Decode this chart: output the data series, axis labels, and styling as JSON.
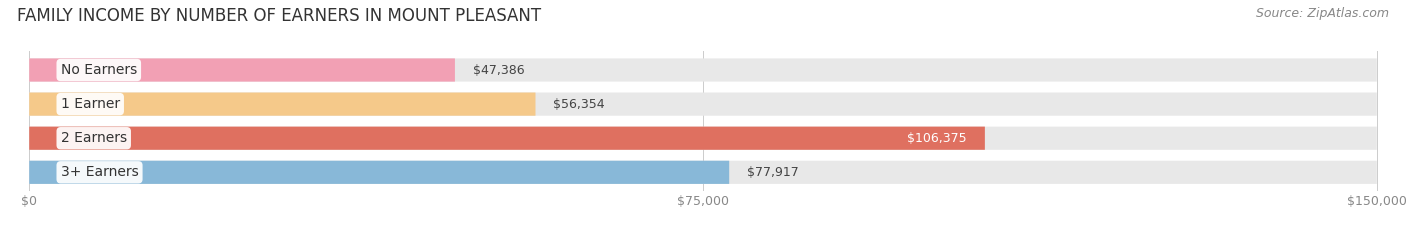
{
  "title": "FAMILY INCOME BY NUMBER OF EARNERS IN MOUNT PLEASANT",
  "source": "Source: ZipAtlas.com",
  "categories": [
    "No Earners",
    "1 Earner",
    "2 Earners",
    "3+ Earners"
  ],
  "values": [
    47386,
    56354,
    106375,
    77917
  ],
  "bar_colors": [
    "#f2a0b4",
    "#f5c98a",
    "#df7060",
    "#88b8d8"
  ],
  "bar_bg_color": "#e8e8e8",
  "value_labels": [
    "$47,386",
    "$56,354",
    "$106,375",
    "$77,917"
  ],
  "xlim": [
    0,
    150000
  ],
  "xticks": [
    0,
    75000,
    150000
  ],
  "xtick_labels": [
    "$0",
    "$75,000",
    "$150,000"
  ],
  "title_fontsize": 12,
  "source_fontsize": 9,
  "label_fontsize": 10,
  "value_fontsize": 9,
  "fig_bg_color": "#ffffff",
  "bar_bg_row_color": "#f0f0f0"
}
